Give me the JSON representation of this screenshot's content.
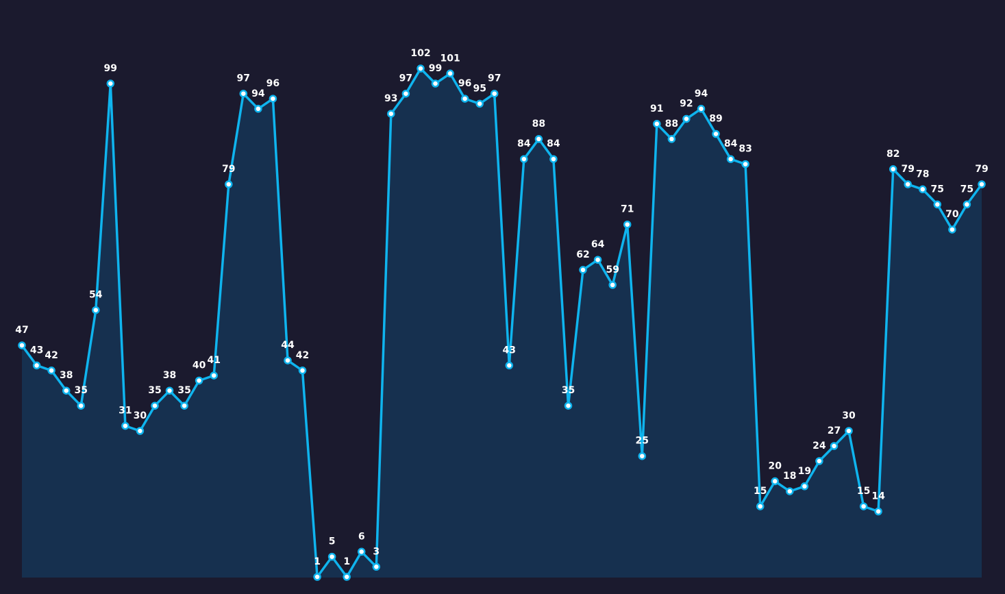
{
  "colors": {
    "background": "#1b1a2e",
    "line": "#0fb4ee",
    "area_fill": "#16304f",
    "marker_fill": "#ffffff",
    "label_text": "#ffffff"
  },
  "chart_data": {
    "type": "area",
    "title": "",
    "xlabel": "",
    "ylabel": "",
    "ylim": [
      1,
      102
    ],
    "grid": false,
    "legend": "none",
    "series": [
      {
        "values": [
          47,
          43,
          42,
          38,
          35,
          54,
          99,
          31,
          30,
          35,
          38,
          35,
          40,
          41,
          79,
          97,
          94,
          96,
          44,
          42,
          1,
          5,
          1,
          6,
          3,
          93,
          97,
          102,
          99,
          101,
          96,
          95,
          97,
          43,
          84,
          88,
          84,
          35,
          62,
          64,
          59,
          71,
          25,
          91,
          88,
          92,
          94,
          89,
          84,
          83,
          15,
          20,
          18,
          19,
          24,
          27,
          30,
          15,
          14,
          82,
          79,
          78,
          75,
          70,
          75,
          79
        ]
      }
    ]
  }
}
